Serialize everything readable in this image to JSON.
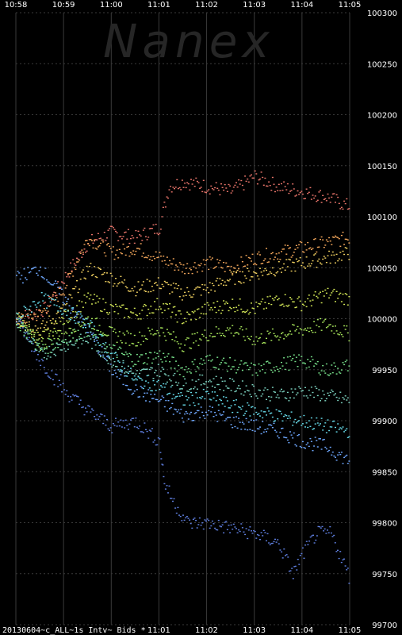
{
  "watermark": "Nanex",
  "footer_label": "20130604~c_ALL~1s Intv~ Bids *",
  "colors": {
    "background": "#000000",
    "grid": "#3a3a3a",
    "text": "#ffffff",
    "palette": [
      "#5f7fe0",
      "#6fa8ff",
      "#66d9e8",
      "#7dd3c0",
      "#77e08a",
      "#a6e35a",
      "#d4e857",
      "#f0d060",
      "#f2a65a",
      "#e8746a"
    ]
  },
  "chart_data": {
    "type": "scatter",
    "title": "",
    "xlabel": "",
    "ylabel": "",
    "x_ticks": [
      "10:58",
      "10:59",
      "11:00",
      "11:01",
      "11:02",
      "11:03",
      "11:04",
      "11:05"
    ],
    "x_ticks_bottom": [
      "11:01",
      "11:02",
      "11:03",
      "11:04",
      "11:05"
    ],
    "y_ticks": [
      100300,
      100250,
      100200,
      100150,
      100100,
      100050,
      100000,
      99950,
      99900,
      99850,
      99800,
      99750,
      99700
    ],
    "ylim": [
      99700,
      100300
    ],
    "x_range_minutes": [
      0,
      7
    ],
    "grid": true,
    "series": [
      {
        "color": "#e8746a",
        "values": [
          [
            0.0,
            100000
          ],
          [
            0.6,
            100010
          ],
          [
            1.0,
            100040
          ],
          [
            1.5,
            100075
          ],
          [
            2.0,
            100085
          ],
          [
            2.5,
            100080
          ],
          [
            3.0,
            100090
          ],
          [
            3.2,
            100130
          ],
          [
            3.5,
            100135
          ],
          [
            4.0,
            100130
          ],
          [
            4.5,
            100125
          ],
          [
            5.0,
            100140
          ],
          [
            5.5,
            100130
          ],
          [
            6.0,
            100125
          ],
          [
            6.5,
            100120
          ],
          [
            7.0,
            100110
          ]
        ]
      },
      {
        "color": "#f2a65a",
        "values": [
          [
            0.0,
            100000
          ],
          [
            0.5,
            100005
          ],
          [
            1.0,
            100030
          ],
          [
            1.5,
            100080
          ],
          [
            2.0,
            100065
          ],
          [
            2.5,
            100070
          ],
          [
            3.0,
            100060
          ],
          [
            3.5,
            100050
          ],
          [
            4.0,
            100055
          ],
          [
            4.5,
            100050
          ],
          [
            5.0,
            100060
          ],
          [
            5.5,
            100065
          ],
          [
            6.0,
            100070
          ],
          [
            6.5,
            100075
          ],
          [
            7.0,
            100080
          ]
        ]
      },
      {
        "color": "#f0d060",
        "values": [
          [
            0.0,
            100000
          ],
          [
            0.5,
            99990
          ],
          [
            1.0,
            100010
          ],
          [
            1.5,
            100050
          ],
          [
            2.0,
            100040
          ],
          [
            2.5,
            100030
          ],
          [
            3.0,
            100035
          ],
          [
            3.5,
            100025
          ],
          [
            4.0,
            100030
          ],
          [
            4.5,
            100040
          ],
          [
            5.0,
            100045
          ],
          [
            5.5,
            100050
          ],
          [
            6.0,
            100055
          ],
          [
            6.5,
            100060
          ],
          [
            7.0,
            100065
          ]
        ]
      },
      {
        "color": "#d4e857",
        "values": [
          [
            0.0,
            100000
          ],
          [
            0.5,
            99980
          ],
          [
            1.0,
            100000
          ],
          [
            1.5,
            100020
          ],
          [
            2.0,
            100010
          ],
          [
            2.5,
            100005
          ],
          [
            3.0,
            100015
          ],
          [
            3.5,
            100000
          ],
          [
            4.0,
            100010
          ],
          [
            4.5,
            100015
          ],
          [
            5.0,
            100010
          ],
          [
            5.5,
            100020
          ],
          [
            6.0,
            100015
          ],
          [
            6.5,
            100025
          ],
          [
            7.0,
            100020
          ]
        ]
      },
      {
        "color": "#a6e35a",
        "values": [
          [
            0.0,
            100000
          ],
          [
            0.5,
            99975
          ],
          [
            1.0,
            99990
          ],
          [
            1.5,
            100000
          ],
          [
            2.0,
            99985
          ],
          [
            2.5,
            99980
          ],
          [
            3.0,
            99990
          ],
          [
            3.5,
            99975
          ],
          [
            4.0,
            99985
          ],
          [
            4.5,
            99990
          ],
          [
            5.0,
            99980
          ],
          [
            5.5,
            99985
          ],
          [
            6.0,
            99990
          ],
          [
            6.5,
            99995
          ],
          [
            7.0,
            99985
          ]
        ]
      },
      {
        "color": "#77e08a",
        "values": [
          [
            0.0,
            100000
          ],
          [
            0.5,
            99970
          ],
          [
            1.0,
            99980
          ],
          [
            1.5,
            99990
          ],
          [
            2.0,
            99970
          ],
          [
            2.5,
            99960
          ],
          [
            3.0,
            99965
          ],
          [
            3.5,
            99950
          ],
          [
            4.0,
            99960
          ],
          [
            4.5,
            99955
          ],
          [
            5.0,
            99950
          ],
          [
            5.5,
            99955
          ],
          [
            6.0,
            99960
          ],
          [
            6.5,
            99950
          ],
          [
            7.0,
            99955
          ]
        ]
      },
      {
        "color": "#7dd3c0",
        "values": [
          [
            0.0,
            100000
          ],
          [
            0.5,
            99965
          ],
          [
            1.0,
            99975
          ],
          [
            1.5,
            99980
          ],
          [
            2.0,
            99960
          ],
          [
            2.5,
            99945
          ],
          [
            3.0,
            99950
          ],
          [
            3.5,
            99935
          ],
          [
            4.0,
            99940
          ],
          [
            4.5,
            99935
          ],
          [
            5.0,
            99930
          ],
          [
            5.5,
            99925
          ],
          [
            6.0,
            99930
          ],
          [
            6.5,
            99925
          ],
          [
            7.0,
            99920
          ]
        ]
      },
      {
        "color": "#66d9e8",
        "values": [
          [
            0.0,
            100000
          ],
          [
            0.5,
            100020
          ],
          [
            1.0,
            100010
          ],
          [
            1.5,
            99995
          ],
          [
            2.0,
            99965
          ],
          [
            2.5,
            99940
          ],
          [
            3.0,
            99935
          ],
          [
            3.5,
            99920
          ],
          [
            4.0,
            99925
          ],
          [
            4.5,
            99915
          ],
          [
            5.0,
            99910
          ],
          [
            5.5,
            99905
          ],
          [
            6.0,
            99900
          ],
          [
            6.5,
            99895
          ],
          [
            7.0,
            99890
          ]
        ]
      },
      {
        "color": "#6fa8ff",
        "values": [
          [
            0.0,
            100040
          ],
          [
            0.5,
            100050
          ],
          [
            1.0,
            100020
          ],
          [
            1.5,
            99990
          ],
          [
            2.0,
            99950
          ],
          [
            2.5,
            99930
          ],
          [
            3.0,
            99920
          ],
          [
            3.5,
            99905
          ],
          [
            4.0,
            99910
          ],
          [
            4.5,
            99900
          ],
          [
            5.0,
            99895
          ],
          [
            5.5,
            99890
          ],
          [
            6.0,
            99880
          ],
          [
            6.5,
            99875
          ],
          [
            7.0,
            99860
          ]
        ]
      },
      {
        "color": "#5f7fe0",
        "values": [
          [
            0.0,
            100000
          ],
          [
            0.5,
            99960
          ],
          [
            1.0,
            99930
          ],
          [
            1.5,
            99910
          ],
          [
            2.0,
            99895
          ],
          [
            2.5,
            99900
          ],
          [
            3.0,
            99880
          ],
          [
            3.1,
            99840
          ],
          [
            3.3,
            99820
          ],
          [
            3.6,
            99800
          ],
          [
            4.0,
            99800
          ],
          [
            4.5,
            99795
          ],
          [
            5.0,
            99790
          ],
          [
            5.5,
            99780
          ],
          [
            5.8,
            99750
          ],
          [
            6.0,
            99770
          ],
          [
            6.3,
            99790
          ],
          [
            6.6,
            99790
          ],
          [
            7.0,
            99745
          ]
        ]
      }
    ]
  }
}
